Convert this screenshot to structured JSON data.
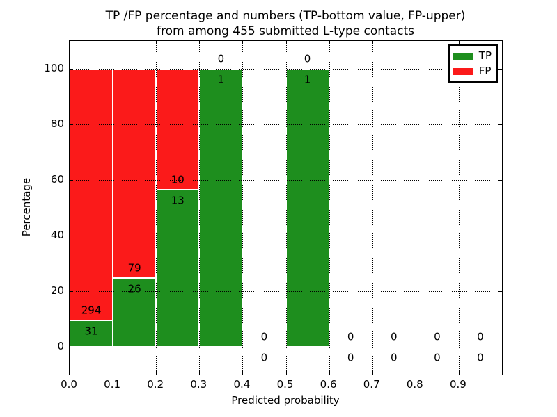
{
  "chart_data": {
    "type": "bar",
    "stacked": true,
    "title_line1": "TP /FP percentage and numbers (TP-bottom value, FP-upper)",
    "title_line2": "from among 455 submitted L-type contacts",
    "xlabel": "Predicted probability",
    "ylabel": "Percentage",
    "xlim": [
      0.0,
      1.0
    ],
    "ylim": [
      -10,
      110
    ],
    "grid": "dotted",
    "colors": {
      "tp": "#1e8e1e",
      "fp": "#fb1a1a"
    },
    "xticks": [
      {
        "value": 0.0,
        "label": "0.0"
      },
      {
        "value": 0.1,
        "label": "0.1"
      },
      {
        "value": 0.2,
        "label": "0.2"
      },
      {
        "value": 0.3,
        "label": "0.3"
      },
      {
        "value": 0.4,
        "label": "0.4"
      },
      {
        "value": 0.5,
        "label": "0.5"
      },
      {
        "value": 0.6,
        "label": "0.6"
      },
      {
        "value": 0.7,
        "label": "0.7"
      },
      {
        "value": 0.8,
        "label": "0.8"
      },
      {
        "value": 0.9,
        "label": "0.9"
      }
    ],
    "yticks": [
      {
        "value": 0,
        "label": "0"
      },
      {
        "value": 20,
        "label": "20"
      },
      {
        "value": 40,
        "label": "40"
      },
      {
        "value": 60,
        "label": "60"
      },
      {
        "value": 80,
        "label": "80"
      },
      {
        "value": 100,
        "label": "100"
      }
    ],
    "legend": {
      "position": "upper right",
      "entries": [
        {
          "label": "TP",
          "color": "#1e8e1e"
        },
        {
          "label": "FP",
          "color": "#fb1a1a"
        }
      ]
    },
    "bins": [
      {
        "x_start": 0.0,
        "x_end": 0.1,
        "tp_count": 31,
        "fp_count": 294,
        "tp_pct": 9.54,
        "fp_pct": 90.46
      },
      {
        "x_start": 0.1,
        "x_end": 0.2,
        "tp_count": 26,
        "fp_count": 79,
        "tp_pct": 24.76,
        "fp_pct": 75.24
      },
      {
        "x_start": 0.2,
        "x_end": 0.3,
        "tp_count": 13,
        "fp_count": 10,
        "tp_pct": 56.52,
        "fp_pct": 43.48
      },
      {
        "x_start": 0.3,
        "x_end": 0.4,
        "tp_count": 1,
        "fp_count": 0,
        "tp_pct": 100,
        "fp_pct": 0
      },
      {
        "x_start": 0.4,
        "x_end": 0.5,
        "tp_count": 0,
        "fp_count": 0,
        "tp_pct": 0,
        "fp_pct": 0
      },
      {
        "x_start": 0.5,
        "x_end": 0.6,
        "tp_count": 1,
        "fp_count": 0,
        "tp_pct": 100,
        "fp_pct": 0
      },
      {
        "x_start": 0.6,
        "x_end": 0.7,
        "tp_count": 0,
        "fp_count": 0,
        "tp_pct": 0,
        "fp_pct": 0
      },
      {
        "x_start": 0.7,
        "x_end": 0.8,
        "tp_count": 0,
        "fp_count": 0,
        "tp_pct": 0,
        "fp_pct": 0
      },
      {
        "x_start": 0.8,
        "x_end": 0.9,
        "tp_count": 0,
        "fp_count": 0,
        "tp_pct": 0,
        "fp_pct": 0
      },
      {
        "x_start": 0.9,
        "x_end": 1.0,
        "tp_count": 0,
        "fp_count": 0,
        "tp_pct": 0,
        "fp_pct": 0
      }
    ]
  }
}
